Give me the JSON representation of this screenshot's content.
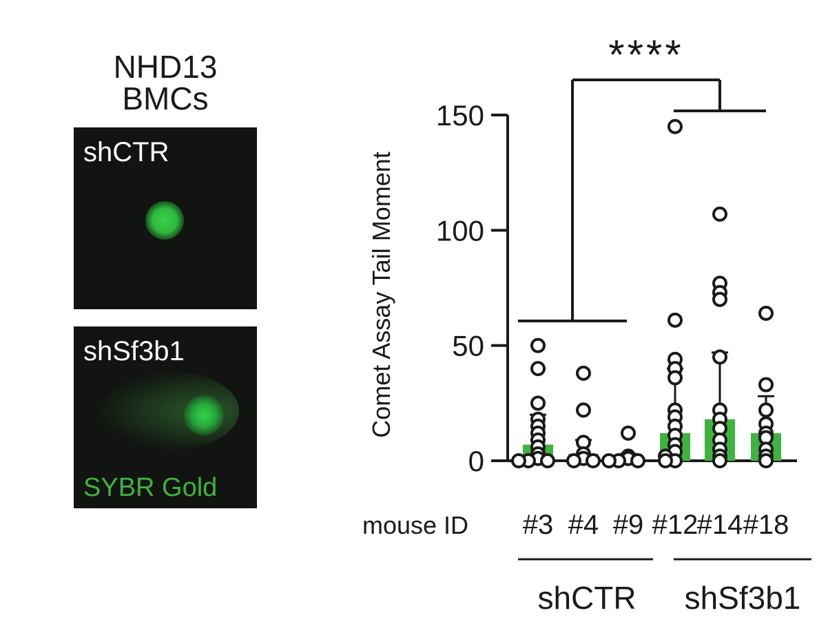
{
  "left_panel": {
    "title_line1": "NHD13",
    "title_line2": "BMCs",
    "image_top_label": "shCTR",
    "image_bottom_label": "shSf3b1",
    "stain_label": "SYBR Gold"
  },
  "colors": {
    "bar": "#3fb33f",
    "text": "#1a1a1a",
    "micro_bg": "#111411"
  },
  "chart_data": {
    "type": "bar",
    "ylabel": "Comet Assay Tail Moment",
    "ylim": [
      0,
      150
    ],
    "yticks": [
      0,
      50,
      100,
      150
    ],
    "xlabel_prefix": "mouse ID",
    "categories": [
      "#3",
      "#4",
      "#9",
      "#12",
      "#14",
      "#18"
    ],
    "groups": [
      {
        "name": "shCTR",
        "members": [
          "#3",
          "#4",
          "#9"
        ]
      },
      {
        "name": "shSf3b1",
        "members": [
          "#12",
          "#14",
          "#18"
        ]
      }
    ],
    "values": [
      7,
      3,
      1,
      12,
      18,
      12
    ],
    "error_upper": [
      20,
      9,
      3,
      40,
      47,
      28
    ],
    "points": [
      [
        50,
        40,
        25,
        18,
        15,
        12,
        9,
        6,
        3,
        1,
        0,
        0,
        0
      ],
      [
        38,
        22,
        8,
        3,
        1,
        0,
        0
      ],
      [
        12,
        2,
        1,
        0,
        0,
        0
      ],
      [
        145,
        61,
        44,
        40,
        36,
        22,
        19,
        15,
        11,
        7,
        4,
        2,
        0,
        0
      ],
      [
        107,
        77,
        73,
        70,
        45,
        22,
        18,
        14,
        9,
        5,
        2,
        0
      ],
      [
        64,
        33,
        22,
        16,
        12,
        10,
        5,
        2,
        0
      ]
    ],
    "significance": "****"
  }
}
